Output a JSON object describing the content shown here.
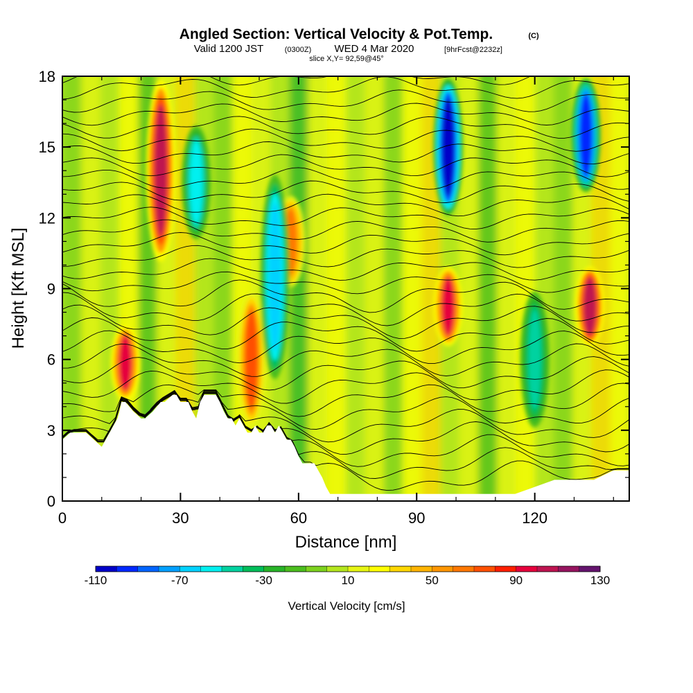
{
  "header": {
    "title_main": "Angled Section: Vertical Velocity & Pot.Temp.",
    "title_unit": "(C)",
    "valid_prefix": "Valid 1200 JST",
    "valid_utc": "(0300Z)",
    "valid_date": "WED 4 Mar 2020",
    "forecast": "[9hrFcst@2232z]",
    "slice": "slice X,Y= 92,59@45°"
  },
  "chart_data": {
    "type": "heatmap",
    "xlabel": "Distance [nm]",
    "ylabel": "Height [Kft MSL]",
    "xlim": [
      0,
      144
    ],
    "ylim": [
      0,
      18
    ],
    "x_ticks": [
      "0",
      "30",
      "60",
      "90",
      "120"
    ],
    "y_ticks": [
      "0",
      "3",
      "6",
      "9",
      "12",
      "15",
      "18"
    ],
    "grid": false,
    "field": "Vertical Velocity",
    "contours": "Potential Temperature (C)",
    "terrain_profile": {
      "x": [
        0,
        2,
        4,
        6,
        8,
        10,
        11,
        12,
        14,
        14.5,
        15,
        16,
        18,
        20,
        21,
        23,
        25,
        26,
        28,
        29,
        30,
        32,
        33,
        34,
        35,
        36,
        37,
        38,
        39,
        40,
        41,
        42,
        43,
        44,
        45,
        46,
        47,
        48,
        49,
        50,
        51,
        52,
        53,
        54,
        55,
        56,
        57,
        58,
        59,
        60,
        61,
        62,
        63,
        64,
        65,
        66,
        67,
        68,
        70,
        75,
        85,
        95,
        100,
        105,
        110,
        115,
        120,
        125,
        130,
        135,
        140,
        144
      ],
      "y": [
        2.6,
        2.9,
        2.9,
        2.9,
        2.6,
        2.3,
        2.6,
        2.9,
        3.5,
        3.8,
        4.2,
        4.2,
        3.8,
        3.5,
        3.5,
        3.8,
        4.2,
        4.2,
        4.5,
        4.5,
        4.2,
        4.2,
        3.8,
        3.5,
        4.2,
        4.5,
        4.5,
        4.5,
        4.5,
        4.2,
        3.8,
        3.5,
        3.5,
        3.2,
        3.5,
        3.2,
        2.9,
        2.9,
        3.2,
        2.9,
        2.9,
        3.2,
        3.2,
        2.9,
        3.2,
        2.9,
        2.6,
        2.6,
        2.3,
        1.9,
        1.6,
        1.6,
        1.6,
        1.6,
        1.3,
        1.0,
        0.6,
        0.3,
        0.3,
        0.3,
        0.3,
        0.3,
        0.3,
        0.3,
        0.3,
        0.3,
        0.6,
        0.9,
        0.9,
        0.9,
        1.3,
        1.3
      ]
    },
    "updrafts": [
      {
        "x": 16,
        "y_bottom": 4.2,
        "y_top": 7.5,
        "value": 90
      },
      {
        "x": 25,
        "y_bottom": 10,
        "y_top": 18,
        "value": 100
      },
      {
        "x": 48,
        "y_bottom": 3.0,
        "y_top": 9,
        "value": 70
      },
      {
        "x": 58,
        "y_bottom": 9,
        "y_top": 13,
        "value": 60
      },
      {
        "x": 98,
        "y_bottom": 6.5,
        "y_top": 10,
        "value": 90
      },
      {
        "x": 134,
        "y_bottom": 6.5,
        "y_top": 10,
        "value": 100
      }
    ],
    "downdrafts": [
      {
        "x": 98,
        "y_bottom": 12,
        "y_top": 18,
        "value": -110
      },
      {
        "x": 133,
        "y_bottom": 13,
        "y_top": 18,
        "value": -100
      },
      {
        "x": 54,
        "y_bottom": 5,
        "y_top": 14,
        "value": -70
      },
      {
        "x": 34,
        "y_bottom": 11,
        "y_top": 16,
        "value": -60
      },
      {
        "x": 120,
        "y_bottom": 3,
        "y_top": 9,
        "value": -50
      }
    ],
    "colorbar": {
      "title": "Vertical Velocity [cm/s]",
      "min": -110,
      "max": 130,
      "step": 10,
      "labels": [
        "-110",
        "-70",
        "-30",
        "10",
        "50",
        "90",
        "130"
      ],
      "colors": [
        "#0000c8",
        "#0028ff",
        "#0064ff",
        "#00a0ff",
        "#00d2ff",
        "#00f0f0",
        "#00d2a0",
        "#00be5a",
        "#28b428",
        "#4bbe1e",
        "#7dd21e",
        "#b4e61e",
        "#e6f514",
        "#ffff00",
        "#ffd700",
        "#ffb400",
        "#ff9600",
        "#ff7800",
        "#ff5000",
        "#ff1e00",
        "#e6003c",
        "#be1450",
        "#96145f",
        "#64146e"
      ]
    }
  }
}
